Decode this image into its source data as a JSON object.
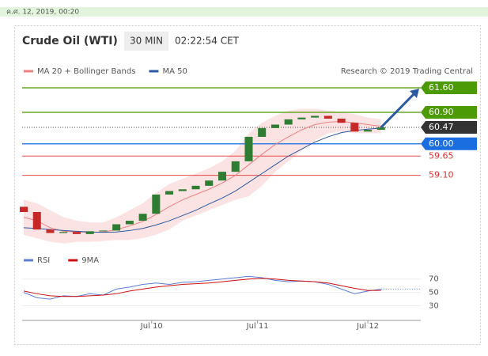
{
  "header": {
    "timestamp": "ค.ศ. 12, 2019, 00:20"
  },
  "chart_data": {
    "type": "candlestick",
    "title": "Crude Oil (WTI)",
    "timeframe": "30 MIN",
    "clock": "02:22:54 CET",
    "credit": "Research © 2019 Trading Central",
    "x": [
      0,
      3,
      6,
      9,
      12,
      15,
      18,
      21,
      24,
      27,
      30,
      33,
      36,
      39,
      42,
      45,
      48,
      51,
      54,
      57,
      60,
      63,
      66,
      69,
      72,
      75,
      78,
      81
    ],
    "xlim": [
      0,
      90
    ],
    "xticks": [
      {
        "value": 29,
        "label": "Jul 10"
      },
      {
        "value": 53,
        "label": "Jul 11"
      },
      {
        "value": 78,
        "label": "Jul 12"
      }
    ],
    "ylim": [
      57.1,
      61.85
    ],
    "open": [
      58.2,
      58.05,
      57.55,
      57.45,
      57.48,
      57.42,
      57.5,
      57.52,
      57.7,
      57.8,
      58.0,
      58.55,
      58.65,
      58.7,
      58.8,
      58.95,
      59.2,
      59.5,
      60.2,
      60.45,
      60.55,
      60.7,
      60.75,
      60.8,
      60.72,
      60.6,
      60.35,
      60.4
    ],
    "close": [
      58.05,
      57.55,
      57.45,
      57.48,
      57.42,
      57.5,
      57.52,
      57.7,
      57.8,
      58.0,
      58.55,
      58.65,
      58.7,
      58.8,
      58.95,
      59.2,
      59.5,
      60.2,
      60.45,
      60.55,
      60.7,
      60.75,
      60.8,
      60.72,
      60.6,
      60.35,
      60.4,
      60.47
    ],
    "up_color": "#2e7d32",
    "down_color": "#c62828",
    "series": [
      {
        "name": "MA 20 + Bollinger Bands",
        "color": "#f08080",
        "values": [
          57.9,
          57.8,
          57.6,
          57.5,
          57.48,
          57.47,
          57.48,
          57.55,
          57.65,
          57.78,
          57.98,
          58.2,
          58.4,
          58.55,
          58.7,
          58.88,
          59.1,
          59.4,
          59.7,
          59.98,
          60.2,
          60.4,
          60.55,
          60.62,
          60.64,
          60.6,
          60.55,
          60.5
        ],
        "upper": [
          58.4,
          58.3,
          58.1,
          57.9,
          57.8,
          57.75,
          57.75,
          57.9,
          58.1,
          58.3,
          58.6,
          58.85,
          59.0,
          59.15,
          59.3,
          59.5,
          59.8,
          60.3,
          60.6,
          60.8,
          60.95,
          61.0,
          61.0,
          60.95,
          60.9,
          60.85,
          60.75,
          60.7
        ],
        "lower": [
          57.4,
          57.3,
          57.2,
          57.15,
          57.2,
          57.2,
          57.22,
          57.25,
          57.25,
          57.3,
          57.4,
          57.55,
          57.8,
          57.95,
          58.1,
          58.25,
          58.4,
          58.5,
          58.8,
          59.2,
          59.5,
          59.8,
          60.1,
          60.3,
          60.35,
          60.3,
          60.3,
          60.3
        ]
      },
      {
        "name": "MA 50",
        "color": "#2c5aa0",
        "values": [
          57.6,
          57.58,
          57.55,
          57.52,
          57.5,
          57.48,
          57.47,
          57.48,
          57.52,
          57.58,
          57.68,
          57.8,
          57.95,
          58.1,
          58.28,
          58.45,
          58.65,
          58.9,
          59.15,
          59.4,
          59.65,
          59.85,
          60.05,
          60.2,
          60.32,
          60.38,
          60.42,
          60.45
        ]
      }
    ],
    "levels": [
      {
        "value": 61.6,
        "label": "61.60",
        "color": "#4c9a06",
        "boxed": true
      },
      {
        "value": 60.9,
        "label": "60.90",
        "color": "#4c9a06",
        "boxed": true
      },
      {
        "value": 60.47,
        "label": "60.47",
        "color": "#333333",
        "boxed": true
      },
      {
        "value": 60.0,
        "label": "60.00",
        "color": "#1a6ee0",
        "boxed": true
      },
      {
        "value": 59.65,
        "label": "59.65",
        "color": "#e03030",
        "boxed": false
      },
      {
        "value": 59.1,
        "label": "59.10",
        "color": "#e03030",
        "boxed": false
      }
    ],
    "rsi": {
      "ylim": [
        20,
        85
      ],
      "yticks": [
        70,
        50,
        30
      ],
      "series": [
        {
          "name": "RSI",
          "color": "#5b7fd6",
          "values": [
            50,
            42,
            40,
            45,
            44,
            48,
            46,
            55,
            58,
            62,
            64,
            62,
            65,
            66,
            68,
            70,
            72,
            74,
            72,
            68,
            66,
            67,
            66,
            62,
            55,
            48,
            52,
            55
          ]
        },
        {
          "name": "9MA",
          "color": "#d01010",
          "values": [
            52,
            48,
            45,
            44,
            44,
            45,
            46,
            48,
            52,
            55,
            58,
            60,
            62,
            63,
            64,
            66,
            68,
            70,
            71,
            70,
            68,
            67,
            66,
            64,
            60,
            56,
            53,
            53
          ]
        }
      ]
    }
  }
}
